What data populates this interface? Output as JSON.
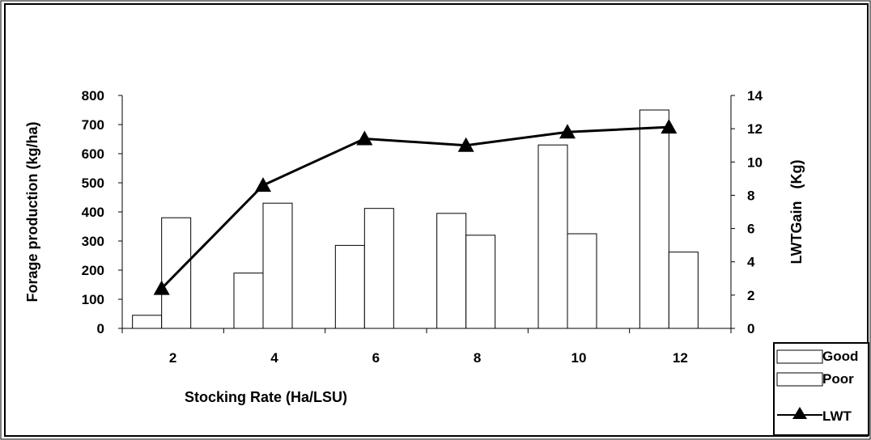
{
  "chart_data": {
    "type": "bar",
    "categories": [
      "2",
      "4",
      "6",
      "8",
      "10",
      "12"
    ],
    "series": [
      {
        "name": "Good",
        "type": "bar",
        "axis": "left",
        "values": [
          45,
          190,
          285,
          395,
          630,
          750
        ]
      },
      {
        "name": "Poor",
        "type": "bar",
        "axis": "left",
        "values": [
          380,
          430,
          412,
          320,
          325,
          262
        ]
      },
      {
        "name": "LWT",
        "type": "line",
        "axis": "right",
        "marker": "triangle",
        "values": [
          2.4,
          8.6,
          11.4,
          11.0,
          11.8,
          12.1
        ]
      }
    ],
    "xlabel": "Stocking Rate (Ha/LSU)",
    "ylabel": "Forage production (kg/ha)",
    "y2label": "LWTGain   (Kg)",
    "ylim": [
      0,
      800
    ],
    "y2lim": [
      0,
      14
    ],
    "yticks": [
      "0",
      "100",
      "200",
      "300",
      "400",
      "500",
      "600",
      "700",
      "800"
    ],
    "y2ticks": [
      "0",
      "2",
      "4",
      "6",
      "8",
      "10",
      "12",
      "14"
    ],
    "legend_position": "bottom-right",
    "grid": false,
    "colors": {
      "bar_fill": "#ffffff",
      "stroke": "#000000",
      "line": "#000000"
    }
  }
}
